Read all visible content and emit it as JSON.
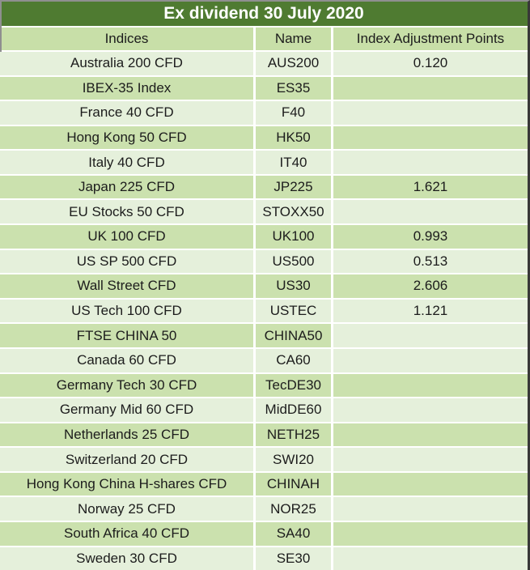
{
  "table": {
    "title": "Ex dividend 30 July 2020",
    "columns": [
      {
        "key": "index",
        "label": "Indices"
      },
      {
        "key": "name",
        "label": "Name"
      },
      {
        "key": "points",
        "label": "Index Adjustment Points"
      }
    ],
    "rows": [
      {
        "index": "Australia 200 CFD",
        "name": "AUS200",
        "points": "0.120"
      },
      {
        "index": "IBEX-35 Index",
        "name": "ES35",
        "points": ""
      },
      {
        "index": "France 40 CFD",
        "name": "F40",
        "points": ""
      },
      {
        "index": "Hong Kong 50 CFD",
        "name": "HK50",
        "points": ""
      },
      {
        "index": "Italy 40 CFD",
        "name": "IT40",
        "points": ""
      },
      {
        "index": "Japan 225 CFD",
        "name": "JP225",
        "points": "1.621"
      },
      {
        "index": "EU Stocks 50 CFD",
        "name": "STOXX50",
        "points": ""
      },
      {
        "index": "UK 100 CFD",
        "name": "UK100",
        "points": "0.993"
      },
      {
        "index": "US SP 500 CFD",
        "name": "US500",
        "points": "0.513"
      },
      {
        "index": "Wall Street CFD",
        "name": "US30",
        "points": "2.606"
      },
      {
        "index": "US Tech 100 CFD",
        "name": "USTEC",
        "points": "1.121"
      },
      {
        "index": "FTSE CHINA 50",
        "name": "CHINA50",
        "points": "",
        "points_light": true
      },
      {
        "index": "Canada 60 CFD",
        "name": "CA60",
        "points": ""
      },
      {
        "index": "Germany Tech 30 CFD",
        "name": "TecDE30",
        "points": ""
      },
      {
        "index": "Germany Mid 60 CFD",
        "name": "MidDE60",
        "points": ""
      },
      {
        "index": "Netherlands 25 CFD",
        "name": "NETH25",
        "points": ""
      },
      {
        "index": "Switzerland 20 CFD",
        "name": "SWI20",
        "points": ""
      },
      {
        "index": "Hong Kong China H-shares CFD",
        "name": "CHINAH",
        "points": ""
      },
      {
        "index": "Norway 25 CFD",
        "name": "NOR25",
        "points": ""
      },
      {
        "index": "South Africa 40 CFD",
        "name": "SA40",
        "points": ""
      },
      {
        "index": "Sweden 30 CFD",
        "name": "SE30",
        "points": ""
      }
    ]
  },
  "colors": {
    "title_bg": "#4f7b31",
    "title_text": "#ffffff",
    "header_bg": "#c8dfa8",
    "row_light": "#e5f0db",
    "row_dark": "#cbe1ae",
    "text": "#1c1c1c",
    "gridline": "#ffffff",
    "outer_border_gray": "#8f8f8f",
    "outer_border_dark": "#383838"
  }
}
